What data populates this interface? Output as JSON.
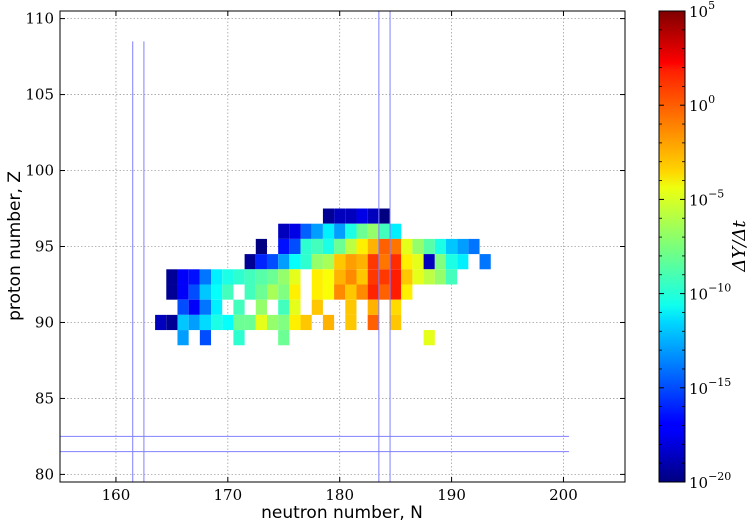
{
  "chart_data": {
    "type": "heatmap",
    "xlabel": "neutron number, N",
    "ylabel": "proton number, Z",
    "xlim": [
      155,
      205.5
    ],
    "ylim": [
      79.5,
      110.5
    ],
    "xticks": [
      160,
      170,
      180,
      190,
      200
    ],
    "yticks": [
      80,
      85,
      90,
      95,
      100,
      105,
      110
    ],
    "grid": true,
    "colorbar": {
      "label": "ΔY/Δt",
      "scale": "log",
      "min_exponent": -20,
      "max_exponent": 5,
      "tick_exponents": [
        -20,
        -15,
        -10,
        -5,
        0,
        5
      ],
      "tick_labels": [
        "10−20",
        "10−15",
        "10−10",
        "10−5",
        "100",
        "105"
      ],
      "colormap": "jet"
    },
    "guide_lines": {
      "vertical": [
        {
          "x": 161.5,
          "y_range": [
            79.5,
            108.5
          ]
        },
        {
          "x": 162.5,
          "y_range": [
            79.5,
            108.5
          ]
        },
        {
          "x": 183.5,
          "y_range": [
            79.5,
            110.5
          ]
        },
        {
          "x": 184.5,
          "y_range": [
            79.5,
            110.5
          ]
        }
      ],
      "horizontal": [
        {
          "y": 81.5,
          "x_range": [
            155,
            200.5
          ]
        },
        {
          "y": 82.5,
          "x_range": [
            155,
            200.5
          ]
        }
      ],
      "color": "#8080ff"
    },
    "cells": [
      {
        "z": 97,
        "n": 179,
        "v": -19.5
      },
      {
        "z": 97,
        "n": 180,
        "v": -18.5
      },
      {
        "z": 97,
        "n": 181,
        "v": -18.5
      },
      {
        "z": 97,
        "n": 182,
        "v": -17.5
      },
      {
        "z": 97,
        "n": 183,
        "v": -18.5
      },
      {
        "z": 97,
        "n": 184,
        "v": -20
      },
      {
        "z": 96,
        "n": 175,
        "v": -18.5
      },
      {
        "z": 96,
        "n": 176,
        "v": -17.5
      },
      {
        "z": 96,
        "n": 177,
        "v": -14.5
      },
      {
        "z": 96,
        "n": 178,
        "v": -13
      },
      {
        "z": 96,
        "n": 179,
        "v": -11
      },
      {
        "z": 96,
        "n": 180,
        "v": -13
      },
      {
        "z": 96,
        "n": 181,
        "v": -10
      },
      {
        "z": 96,
        "n": 182,
        "v": -8
      },
      {
        "z": 96,
        "n": 183,
        "v": -7
      },
      {
        "z": 96,
        "n": 184,
        "v": -9
      },
      {
        "z": 96,
        "n": 185,
        "v": -11
      },
      {
        "z": 95,
        "n": 173,
        "v": -20
      },
      {
        "z": 95,
        "n": 175,
        "v": -16.5
      },
      {
        "z": 95,
        "n": 176,
        "v": -15
      },
      {
        "z": 95,
        "n": 177,
        "v": -9.5
      },
      {
        "z": 95,
        "n": 178,
        "v": -9
      },
      {
        "z": 95,
        "n": 179,
        "v": -10
      },
      {
        "z": 95,
        "n": 180,
        "v": -8
      },
      {
        "z": 95,
        "n": 181,
        "v": -6
      },
      {
        "z": 95,
        "n": 182,
        "v": -4
      },
      {
        "z": 95,
        "n": 183,
        "v": -2.5
      },
      {
        "z": 95,
        "n": 184,
        "v": -0.5
      },
      {
        "z": 95,
        "n": 185,
        "v": -1
      },
      {
        "z": 95,
        "n": 186,
        "v": -5
      },
      {
        "z": 95,
        "n": 187,
        "v": -7
      },
      {
        "z": 95,
        "n": 188,
        "v": -8.5
      },
      {
        "z": 95,
        "n": 189,
        "v": -10
      },
      {
        "z": 95,
        "n": 190,
        "v": -12
      },
      {
        "z": 95,
        "n": 191,
        "v": -13
      },
      {
        "z": 95,
        "n": 192,
        "v": -14
      },
      {
        "z": 94,
        "n": 172,
        "v": -19.5
      },
      {
        "z": 94,
        "n": 173,
        "v": -16
      },
      {
        "z": 94,
        "n": 174,
        "v": -15
      },
      {
        "z": 94,
        "n": 175,
        "v": -13
      },
      {
        "z": 94,
        "n": 176,
        "v": -10.5
      },
      {
        "z": 94,
        "n": 177,
        "v": -9.5
      },
      {
        "z": 94,
        "n": 178,
        "v": -7
      },
      {
        "z": 94,
        "n": 179,
        "v": -6.5
      },
      {
        "z": 94,
        "n": 180,
        "v": -3
      },
      {
        "z": 94,
        "n": 181,
        "v": -2
      },
      {
        "z": 94,
        "n": 182,
        "v": -2.5
      },
      {
        "z": 94,
        "n": 183,
        "v": 0.5
      },
      {
        "z": 94,
        "n": 184,
        "v": -1
      },
      {
        "z": 94,
        "n": 185,
        "v": 0.8
      },
      {
        "z": 94,
        "n": 186,
        "v": -4
      },
      {
        "z": 94,
        "n": 187,
        "v": -5
      },
      {
        "z": 94,
        "n": 188,
        "v": -18.5
      },
      {
        "z": 94,
        "n": 189,
        "v": -7.5
      },
      {
        "z": 94,
        "n": 190,
        "v": -10
      },
      {
        "z": 94,
        "n": 191,
        "v": -11
      },
      {
        "z": 94,
        "n": 193,
        "v": -14
      },
      {
        "z": 93,
        "n": 165,
        "v": -19.5
      },
      {
        "z": 93,
        "n": 166,
        "v": -17
      },
      {
        "z": 93,
        "n": 167,
        "v": -16.5
      },
      {
        "z": 93,
        "n": 168,
        "v": -14
      },
      {
        "z": 93,
        "n": 169,
        "v": -11
      },
      {
        "z": 93,
        "n": 170,
        "v": -10
      },
      {
        "z": 93,
        "n": 171,
        "v": -9.5
      },
      {
        "z": 93,
        "n": 172,
        "v": -9
      },
      {
        "z": 93,
        "n": 173,
        "v": -8.5
      },
      {
        "z": 93,
        "n": 174,
        "v": -8
      },
      {
        "z": 93,
        "n": 175,
        "v": -7
      },
      {
        "z": 93,
        "n": 176,
        "v": -5
      },
      {
        "z": 93,
        "n": 178,
        "v": -4
      },
      {
        "z": 93,
        "n": 179,
        "v": -4.5
      },
      {
        "z": 93,
        "n": 180,
        "v": -2.5
      },
      {
        "z": 93,
        "n": 181,
        "v": -1.5
      },
      {
        "z": 93,
        "n": 182,
        "v": -3
      },
      {
        "z": 93,
        "n": 183,
        "v": 0.5
      },
      {
        "z": 93,
        "n": 184,
        "v": 0.5
      },
      {
        "z": 93,
        "n": 185,
        "v": 1.2
      },
      {
        "z": 93,
        "n": 186,
        "v": -3
      },
      {
        "z": 93,
        "n": 187,
        "v": -5
      },
      {
        "z": 93,
        "n": 188,
        "v": -6
      },
      {
        "z": 93,
        "n": 189,
        "v": -7
      },
      {
        "z": 93,
        "n": 190,
        "v": -9
      },
      {
        "z": 92,
        "n": 165,
        "v": -19.5
      },
      {
        "z": 92,
        "n": 166,
        "v": -17
      },
      {
        "z": 92,
        "n": 167,
        "v": -15
      },
      {
        "z": 92,
        "n": 168,
        "v": -12
      },
      {
        "z": 92,
        "n": 169,
        "v": -10.5
      },
      {
        "z": 92,
        "n": 170,
        "v": -9
      },
      {
        "z": 92,
        "n": 172,
        "v": -9
      },
      {
        "z": 92,
        "n": 173,
        "v": -8
      },
      {
        "z": 92,
        "n": 174,
        "v": -6.5
      },
      {
        "z": 92,
        "n": 175,
        "v": -7.5
      },
      {
        "z": 92,
        "n": 176,
        "v": -4
      },
      {
        "z": 92,
        "n": 178,
        "v": -4
      },
      {
        "z": 92,
        "n": 179,
        "v": -4.5
      },
      {
        "z": 92,
        "n": 180,
        "v": -1.5
      },
      {
        "z": 92,
        "n": 181,
        "v": -3
      },
      {
        "z": 92,
        "n": 182,
        "v": -1.5
      },
      {
        "z": 92,
        "n": 183,
        "v": 1
      },
      {
        "z": 92,
        "n": 184,
        "v": -0.5
      },
      {
        "z": 92,
        "n": 185,
        "v": 1.2
      },
      {
        "z": 92,
        "n": 186,
        "v": -4
      },
      {
        "z": 91,
        "n": 166,
        "v": -15
      },
      {
        "z": 91,
        "n": 167,
        "v": -17
      },
      {
        "z": 91,
        "n": 168,
        "v": -14
      },
      {
        "z": 91,
        "n": 169,
        "v": -11
      },
      {
        "z": 91,
        "n": 171,
        "v": -9
      },
      {
        "z": 91,
        "n": 173,
        "v": -7
      },
      {
        "z": 91,
        "n": 175,
        "v": -9
      },
      {
        "z": 91,
        "n": 176,
        "v": -5
      },
      {
        "z": 91,
        "n": 178,
        "v": -3
      },
      {
        "z": 91,
        "n": 181,
        "v": -3
      },
      {
        "z": 91,
        "n": 183,
        "v": -2.5
      },
      {
        "z": 91,
        "n": 185,
        "v": -3.5
      },
      {
        "z": 90,
        "n": 164,
        "v": -18.5
      },
      {
        "z": 90,
        "n": 165,
        "v": -19.5
      },
      {
        "z": 90,
        "n": 166,
        "v": -12
      },
      {
        "z": 90,
        "n": 167,
        "v": -13
      },
      {
        "z": 90,
        "n": 168,
        "v": -11.5
      },
      {
        "z": 90,
        "n": 169,
        "v": -10
      },
      {
        "z": 90,
        "n": 170,
        "v": -10.5
      },
      {
        "z": 90,
        "n": 171,
        "v": -8
      },
      {
        "z": 90,
        "n": 172,
        "v": -8
      },
      {
        "z": 90,
        "n": 173,
        "v": -5
      },
      {
        "z": 90,
        "n": 174,
        "v": -7
      },
      {
        "z": 90,
        "n": 175,
        "v": -7.5
      },
      {
        "z": 90,
        "n": 176,
        "v": -4
      },
      {
        "z": 90,
        "n": 177,
        "v": -3
      },
      {
        "z": 90,
        "n": 179,
        "v": -2.5
      },
      {
        "z": 90,
        "n": 181,
        "v": -3
      },
      {
        "z": 90,
        "n": 183,
        "v": -0.5
      },
      {
        "z": 90,
        "n": 185,
        "v": -3
      },
      {
        "z": 89,
        "n": 166,
        "v": -13
      },
      {
        "z": 89,
        "n": 168,
        "v": -15
      },
      {
        "z": 89,
        "n": 171,
        "v": -9.5
      },
      {
        "z": 89,
        "n": 175,
        "v": -8
      },
      {
        "z": 89,
        "n": 188,
        "v": -5
      }
    ]
  }
}
